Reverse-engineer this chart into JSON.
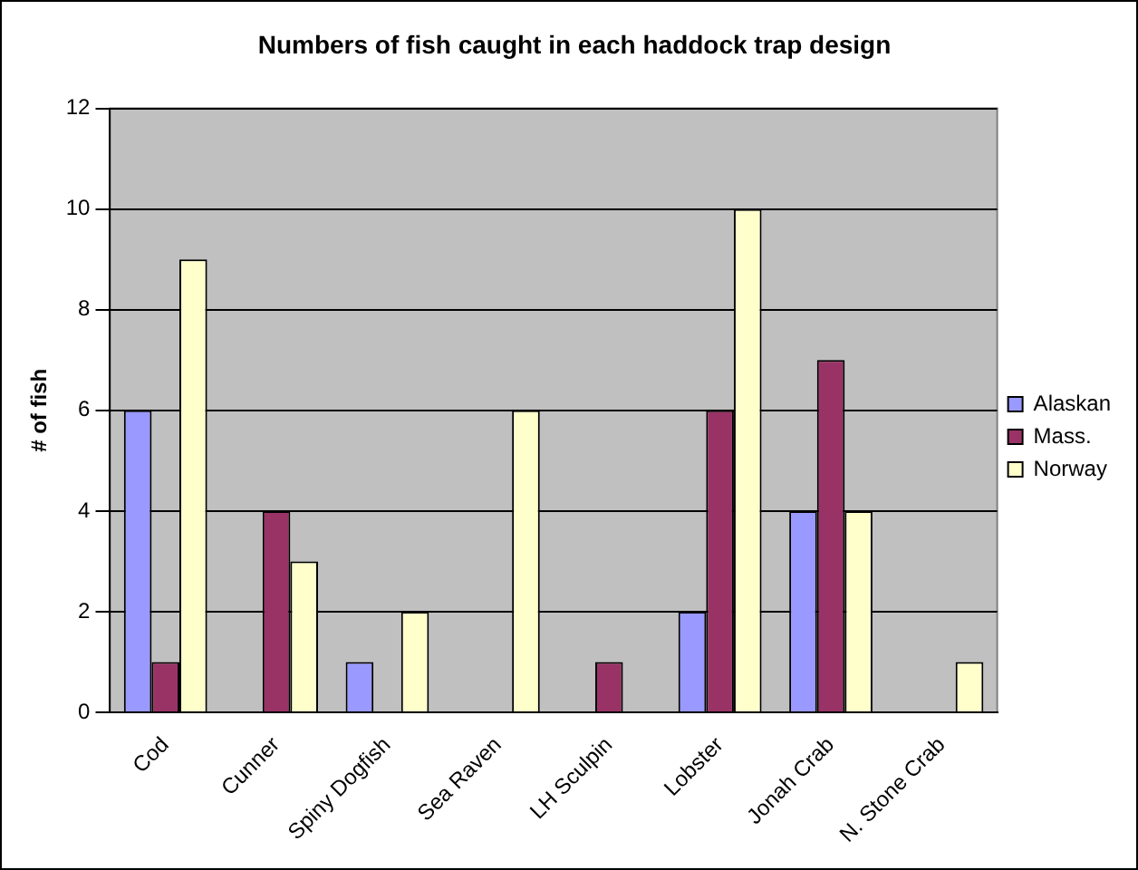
{
  "chart_data": {
    "type": "bar",
    "title": "Numbers of fish caught in each haddock trap design",
    "ylabel": "# of fish",
    "categories": [
      "Cod",
      "Cunner",
      "Spiny Dogfish",
      "Sea Raven",
      "LH Sculpin",
      "Lobster",
      "Jonah Crab",
      "N. Stone Crab"
    ],
    "series": [
      {
        "name": "Alaskan",
        "color": "#9999ff",
        "values": [
          6,
          0,
          1,
          0,
          0,
          2,
          4,
          0
        ]
      },
      {
        "name": "Mass.",
        "color": "#993366",
        "values": [
          1,
          4,
          0,
          0,
          1,
          6,
          7,
          0
        ]
      },
      {
        "name": "Norway",
        "color": "#ffffcc",
        "values": [
          9,
          3,
          2,
          6,
          0,
          10,
          4,
          1
        ]
      }
    ],
    "ylim": [
      0,
      12
    ],
    "yticks": [
      0,
      2,
      4,
      6,
      8,
      10,
      12
    ],
    "grid": "y",
    "legend": "right"
  }
}
